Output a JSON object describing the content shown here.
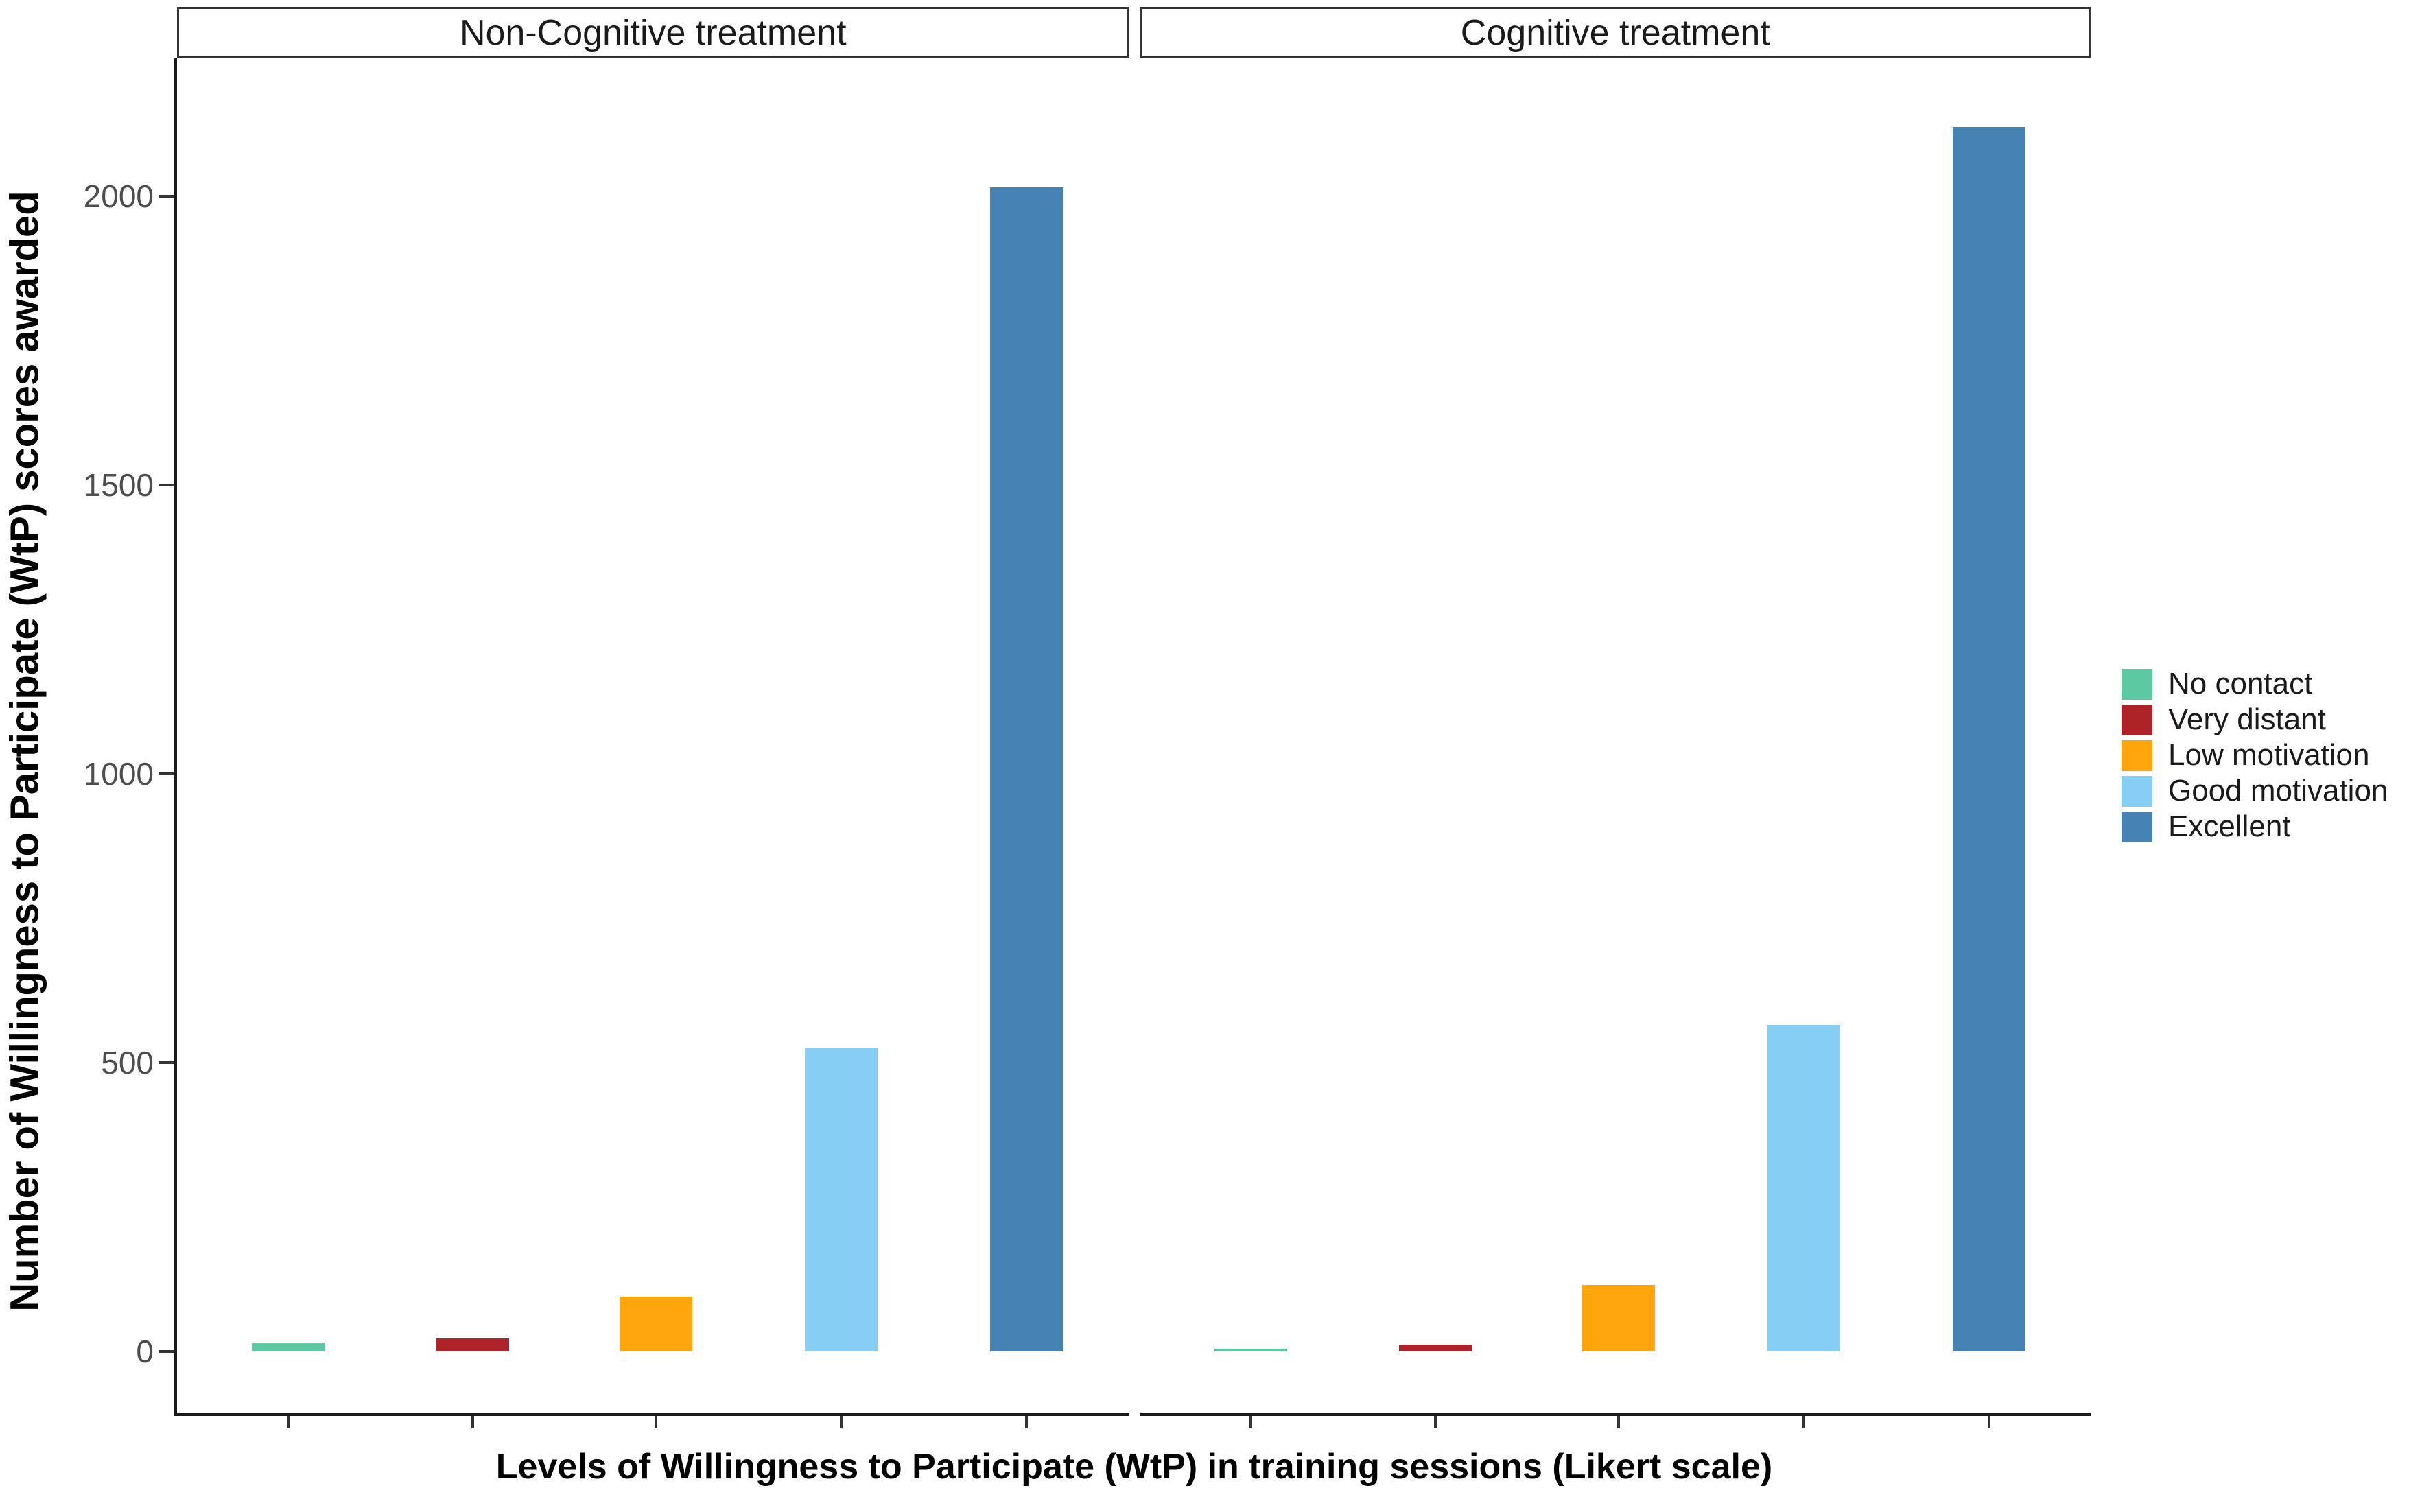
{
  "chart_data": {
    "type": "bar",
    "title": "",
    "facets": [
      {
        "label": "Non-Cognitive treatment",
        "values": [
          15,
          22,
          95,
          525,
          2015
        ]
      },
      {
        "label": "Cognitive treatment",
        "values": [
          5,
          12,
          115,
          565,
          2120
        ]
      }
    ],
    "categories": [
      "No contact",
      "Very distant",
      "Low motivation",
      "Good motivation",
      "Excellent"
    ],
    "colors": [
      "#5CC9A2",
      "#AE2328",
      "#FFA50E",
      "#87CEF4",
      "#4682B4"
    ],
    "xlabel": "Levels of Willingness to Participate (WtP) in training sessions (Likert scale)",
    "ylabel": "Number of Willingness to Participate (WtP) scores awarded",
    "yticks": [
      0,
      500,
      1000,
      1500,
      2000
    ],
    "ylim": [
      0,
      2240
    ],
    "grid": false,
    "legend_position": "right",
    "x_tick_labels_shown": false
  },
  "style_colors": {
    "axis_line": "#1A1A1A",
    "tick_mark": "#333333",
    "tick_label": "#4D4D4D",
    "strip_border": "#333333",
    "background": "#FFFFFF"
  }
}
